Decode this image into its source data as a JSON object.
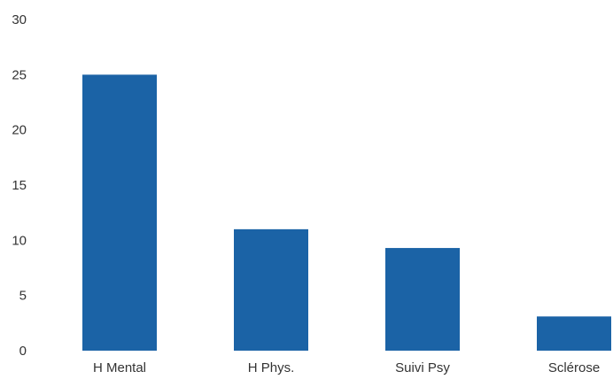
{
  "chart_data": {
    "type": "bar",
    "categories": [
      "H Mental",
      "H Phys.",
      "Suivi Psy",
      "Sclérose"
    ],
    "values": [
      25,
      11,
      9.3,
      3.1
    ],
    "ylim": [
      0,
      30
    ],
    "yticks": [
      0,
      5,
      10,
      15,
      20,
      25,
      30
    ],
    "grid": false,
    "legend": "none",
    "colors": {
      "bar": "#1b63a6",
      "text": "#333333",
      "background": "#ffffff"
    }
  }
}
